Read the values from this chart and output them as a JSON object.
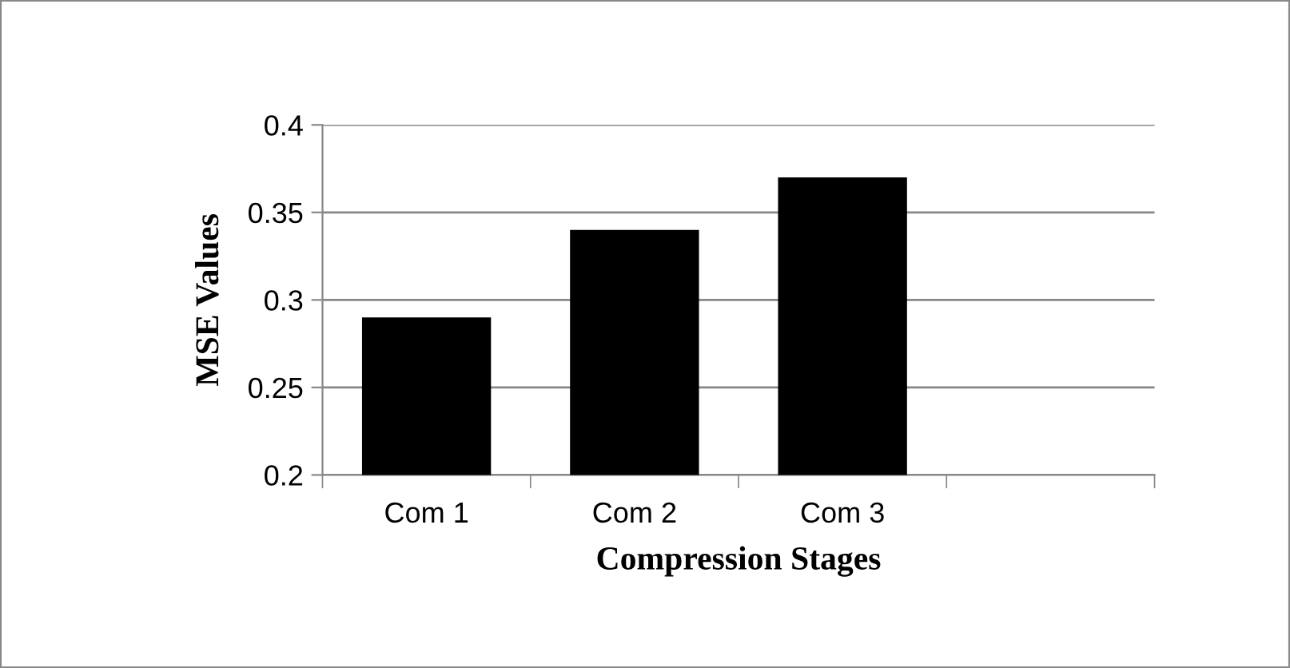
{
  "chart_data": {
    "type": "bar",
    "xlabel": "Compression Stages",
    "ylabel": "MSE Values",
    "categories": [
      "Com 1",
      "Com 2",
      "Com 3",
      null
    ],
    "values": [
      0.29,
      0.34,
      0.37,
      null
    ],
    "color": "#000000",
    "ylim": [
      0.2,
      0.4
    ],
    "yticks": [
      0.2,
      0.25,
      0.3,
      0.35,
      0.4
    ],
    "grid": "y",
    "legend": false
  }
}
